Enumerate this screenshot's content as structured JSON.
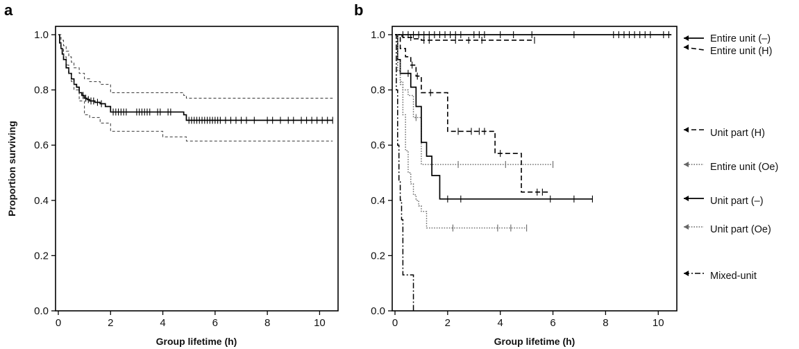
{
  "chart_data": [
    {
      "panel": "a",
      "type": "line",
      "xlabel": "Group lifetime (h)",
      "ylabel": "Proportion surviving",
      "xlim": [
        0,
        10.6
      ],
      "ylim": [
        0,
        1.05
      ],
      "xticks": [
        0,
        2,
        4,
        6,
        8,
        10
      ],
      "yticks": [
        0.0,
        0.2,
        0.4,
        0.6,
        0.8,
        1.0
      ],
      "series": [
        {
          "style": "solid",
          "color": "#000000",
          "x": [
            0,
            0.05,
            0.1,
            0.15,
            0.2,
            0.3,
            0.4,
            0.5,
            0.6,
            0.7,
            0.8,
            0.9,
            1.0,
            1.1,
            1.2,
            1.4,
            1.6,
            1.8,
            2.0,
            4.8,
            4.9,
            10.5
          ],
          "y": [
            1.0,
            0.97,
            0.95,
            0.93,
            0.91,
            0.88,
            0.86,
            0.84,
            0.82,
            0.81,
            0.79,
            0.78,
            0.77,
            0.765,
            0.76,
            0.755,
            0.75,
            0.74,
            0.72,
            0.71,
            0.69,
            0.69
          ],
          "censor_x": [
            0.95,
            1.05,
            1.15,
            1.25,
            1.35,
            1.5,
            1.65,
            2.1,
            2.2,
            2.3,
            2.4,
            2.5,
            2.6,
            3.0,
            3.1,
            3.2,
            3.3,
            3.4,
            3.5,
            3.8,
            3.9,
            4.2,
            4.3,
            5.0,
            5.1,
            5.2,
            5.3,
            5.4,
            5.5,
            5.6,
            5.7,
            5.8,
            5.9,
            6.0,
            6.1,
            6.2,
            6.4,
            6.6,
            6.8,
            7.0,
            7.2,
            7.5,
            8.0,
            8.2,
            8.5,
            8.8,
            9.0,
            9.3,
            9.5,
            9.7,
            9.9,
            10.1,
            10.3,
            10.5
          ]
        },
        {
          "style": "dashed-thin",
          "color": "#333333",
          "x": [
            0,
            0.1,
            0.2,
            0.3,
            0.4,
            0.5,
            0.6,
            0.8,
            1.0,
            1.2,
            1.6,
            2.0,
            4.8,
            4.9,
            10.5
          ],
          "y": [
            1.0,
            0.98,
            0.96,
            0.94,
            0.92,
            0.9,
            0.88,
            0.86,
            0.84,
            0.83,
            0.82,
            0.79,
            0.78,
            0.77,
            0.77
          ]
        },
        {
          "style": "dashed-thin",
          "color": "#333333",
          "x": [
            0,
            0.1,
            0.2,
            0.3,
            0.4,
            0.5,
            0.6,
            0.8,
            1.0,
            1.2,
            1.6,
            2.0,
            4.0,
            4.9,
            10.5
          ],
          "y": [
            1.0,
            0.95,
            0.92,
            0.89,
            0.86,
            0.83,
            0.8,
            0.76,
            0.71,
            0.7,
            0.68,
            0.65,
            0.63,
            0.615,
            0.615
          ]
        }
      ]
    },
    {
      "panel": "b",
      "type": "line",
      "xlabel": "Group lifetime (h)",
      "xlim": [
        0,
        10.6
      ],
      "ylim": [
        0,
        1.05
      ],
      "xticks": [
        0,
        2,
        4,
        6,
        8,
        10
      ],
      "yticks": [
        0.0,
        0.2,
        0.4,
        0.6,
        0.8,
        1.0
      ],
      "series": [
        {
          "name": "Entire unit (–)",
          "style": "solid",
          "x": [
            0,
            10.5
          ],
          "y": [
            1.0,
            1.0
          ],
          "censor_x": [
            0.3,
            0.5,
            0.7,
            0.9,
            1.1,
            1.3,
            1.5,
            1.7,
            1.9,
            2.1,
            2.3,
            2.5,
            3.0,
            3.2,
            3.4,
            4.0,
            4.5,
            5.2,
            6.8,
            8.3,
            8.5,
            8.7,
            8.9,
            9.1,
            9.3,
            9.5,
            9.7,
            10.2,
            10.4
          ]
        },
        {
          "name": "Entire unit (H)",
          "style": "dashed",
          "x": [
            0,
            0.2,
            0.3,
            0.5,
            0.7,
            1.0,
            5.3
          ],
          "y": [
            1.0,
            0.995,
            0.99,
            0.99,
            0.985,
            0.98,
            0.98
          ],
          "censor_x": [
            0.6,
            1.1,
            1.3,
            2.3,
            2.8,
            3.3,
            5.3
          ]
        },
        {
          "name": "Unit part (H)",
          "style": "dashed",
          "x": [
            0,
            0.2,
            0.4,
            0.6,
            0.8,
            1.0,
            2.0,
            3.8,
            4.8,
            5.9
          ],
          "y": [
            1.0,
            0.95,
            0.92,
            0.89,
            0.85,
            0.79,
            0.65,
            0.57,
            0.43,
            0.43
          ],
          "censor_x": [
            0.65,
            0.85,
            1.35,
            2.4,
            2.9,
            3.2,
            3.4,
            4.0,
            5.4,
            5.6
          ]
        },
        {
          "name": "Entire unit (Oe)",
          "style": "dotted",
          "x": [
            0,
            0.1,
            0.2,
            0.3,
            0.5,
            0.7,
            1.0,
            6.0
          ],
          "y": [
            1.0,
            0.87,
            0.83,
            0.8,
            0.78,
            0.7,
            0.53,
            0.53
          ],
          "censor_x": [
            0.8,
            2.4,
            4.2,
            6.0
          ]
        },
        {
          "name": "Unit part (–)",
          "style": "solid",
          "x": [
            0,
            0.1,
            0.2,
            0.4,
            0.6,
            0.8,
            1.0,
            1.2,
            1.4,
            1.7,
            7.5
          ],
          "y": [
            1.0,
            0.91,
            0.86,
            0.86,
            0.81,
            0.74,
            0.61,
            0.56,
            0.49,
            0.405,
            0.405
          ],
          "censor_x": [
            0.5,
            2.0,
            2.5,
            5.9,
            6.8,
            7.5
          ]
        },
        {
          "name": "Unit part (Oe)",
          "style": "dotted",
          "x": [
            0,
            0.1,
            0.2,
            0.3,
            0.4,
            0.5,
            0.6,
            0.7,
            0.8,
            0.9,
            1.0,
            1.2,
            5.0
          ],
          "y": [
            1.0,
            0.9,
            0.82,
            0.71,
            0.58,
            0.5,
            0.46,
            0.42,
            0.4,
            0.38,
            0.36,
            0.3,
            0.3
          ],
          "censor_x": [
            2.2,
            3.9,
            4.4,
            5.0
          ]
        },
        {
          "name": "Mixed-unit",
          "style": "dashdot",
          "x": [
            0,
            0.05,
            0.1,
            0.15,
            0.2,
            0.25,
            0.3,
            0.5,
            0.7,
            0.7
          ],
          "y": [
            1.0,
            0.8,
            0.6,
            0.47,
            0.4,
            0.33,
            0.13,
            0.13,
            0.07,
            0.0
          ]
        }
      ]
    }
  ]
}
